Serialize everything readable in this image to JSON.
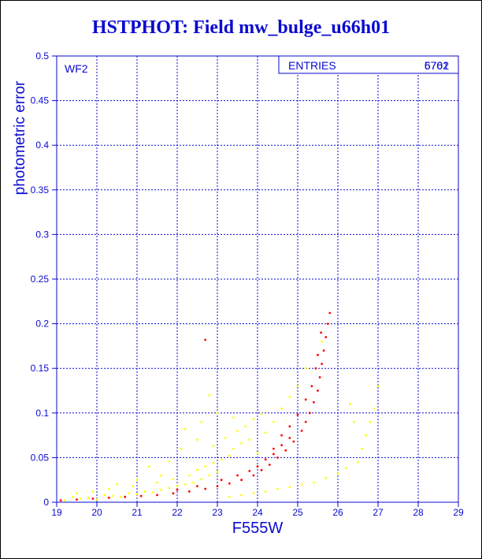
{
  "chart_data": {
    "type": "scatter",
    "title": "HSTPHOT: Field mw_bulge_u66h01",
    "xlabel": "F555W",
    "ylabel": "photometric error",
    "panel_label": "WF2",
    "stats_label": "ENTRIES",
    "entries_values": [
      "5761",
      "6702"
    ],
    "xlim": [
      19,
      29
    ],
    "ylim": [
      0,
      0.5
    ],
    "x_ticks": [
      "19",
      "20",
      "21",
      "22",
      "23",
      "24",
      "25",
      "26",
      "27",
      "28",
      "29"
    ],
    "y_ticks": [
      "0",
      "0.05",
      "0.1",
      "0.15",
      "0.2",
      "0.25",
      "0.3",
      "0.35",
      "0.4",
      "0.45",
      "0.5"
    ],
    "grid": true,
    "series": [
      {
        "color": "#ffff00",
        "points": [
          [
            19.2,
            0.002
          ],
          [
            19.4,
            0.006
          ],
          [
            19.6,
            0.004
          ],
          [
            19.8,
            0.005
          ],
          [
            20.0,
            0.003
          ],
          [
            20.2,
            0.008
          ],
          [
            20.4,
            0.007
          ],
          [
            20.6,
            0.006
          ],
          [
            20.8,
            0.01
          ],
          [
            21.0,
            0.009
          ],
          [
            21.2,
            0.012
          ],
          [
            21.4,
            0.011
          ],
          [
            21.6,
            0.014
          ],
          [
            21.8,
            0.016
          ],
          [
            22.0,
            0.018
          ],
          [
            22.2,
            0.02
          ],
          [
            22.4,
            0.022
          ],
          [
            22.6,
            0.026
          ],
          [
            22.8,
            0.03
          ],
          [
            23.0,
            0.034
          ],
          [
            20.3,
            0.015
          ],
          [
            20.9,
            0.018
          ],
          [
            21.5,
            0.022
          ],
          [
            21.9,
            0.026
          ],
          [
            22.3,
            0.03
          ],
          [
            22.5,
            0.036
          ],
          [
            22.7,
            0.04
          ],
          [
            22.9,
            0.044
          ],
          [
            23.1,
            0.048
          ],
          [
            23.3,
            0.052
          ],
          [
            21.3,
            0.04
          ],
          [
            21.8,
            0.046
          ],
          [
            22.1,
            0.06
          ],
          [
            22.5,
            0.07
          ],
          [
            22.9,
            0.063
          ],
          [
            23.2,
            0.072
          ],
          [
            23.5,
            0.08
          ],
          [
            23.7,
            0.085
          ],
          [
            23.9,
            0.093
          ],
          [
            24.1,
            0.099
          ],
          [
            23.4,
            0.06
          ],
          [
            23.6,
            0.066
          ],
          [
            23.8,
            0.07
          ],
          [
            24.0,
            0.055
          ],
          [
            24.2,
            0.078
          ],
          [
            24.4,
            0.09
          ],
          [
            24.6,
            0.105
          ],
          [
            24.8,
            0.118
          ],
          [
            25.0,
            0.13
          ],
          [
            25.2,
            0.15
          ],
          [
            22.2,
            0.082
          ],
          [
            22.6,
            0.09
          ],
          [
            23.0,
            0.1
          ],
          [
            23.4,
            0.095
          ],
          [
            22.8,
            0.12
          ],
          [
            21.6,
            0.03
          ],
          [
            21.0,
            0.025
          ],
          [
            20.5,
            0.02
          ],
          [
            19.9,
            0.012
          ],
          [
            19.5,
            0.01
          ],
          [
            23.3,
            0.006
          ],
          [
            23.6,
            0.008
          ],
          [
            23.9,
            0.01
          ],
          [
            24.2,
            0.012
          ],
          [
            24.5,
            0.015
          ],
          [
            24.8,
            0.017
          ],
          [
            25.1,
            0.02
          ],
          [
            25.4,
            0.022
          ],
          [
            25.7,
            0.027
          ],
          [
            26.0,
            0.032
          ],
          [
            26.2,
            0.038
          ],
          [
            26.5,
            0.045
          ],
          [
            26.6,
            0.06
          ],
          [
            26.7,
            0.075
          ],
          [
            26.8,
            0.09
          ],
          [
            26.9,
            0.105
          ],
          [
            27.0,
            0.13
          ],
          [
            26.4,
            0.09
          ],
          [
            26.3,
            0.11
          ],
          [
            25.6,
            0.18
          ]
        ]
      },
      {
        "color": "#ff0000",
        "points": [
          [
            19.1,
            0.002
          ],
          [
            19.5,
            0.003
          ],
          [
            19.9,
            0.004
          ],
          [
            20.3,
            0.005
          ],
          [
            20.7,
            0.006
          ],
          [
            21.1,
            0.007
          ],
          [
            21.5,
            0.008
          ],
          [
            21.9,
            0.01
          ],
          [
            22.3,
            0.012
          ],
          [
            22.7,
            0.015
          ],
          [
            23.0,
            0.018
          ],
          [
            23.3,
            0.021
          ],
          [
            23.6,
            0.025
          ],
          [
            23.9,
            0.03
          ],
          [
            24.1,
            0.036
          ],
          [
            24.3,
            0.042
          ],
          [
            24.5,
            0.05
          ],
          [
            24.7,
            0.058
          ],
          [
            24.9,
            0.068
          ],
          [
            25.1,
            0.08
          ],
          [
            25.2,
            0.09
          ],
          [
            25.3,
            0.1
          ],
          [
            25.4,
            0.112
          ],
          [
            25.5,
            0.125
          ],
          [
            25.55,
            0.14
          ],
          [
            25.6,
            0.155
          ],
          [
            25.65,
            0.17
          ],
          [
            25.7,
            0.185
          ],
          [
            25.75,
            0.2
          ],
          [
            25.8,
            0.212
          ],
          [
            22.7,
            0.182
          ],
          [
            24.4,
            0.06
          ],
          [
            24.6,
            0.075
          ],
          [
            24.8,
            0.085
          ],
          [
            25.0,
            0.098
          ],
          [
            25.2,
            0.115
          ],
          [
            25.35,
            0.13
          ],
          [
            25.45,
            0.15
          ],
          [
            25.5,
            0.165
          ],
          [
            25.58,
            0.19
          ],
          [
            22.0,
            0.014
          ],
          [
            22.5,
            0.018
          ],
          [
            23.1,
            0.025
          ],
          [
            23.5,
            0.03
          ],
          [
            23.8,
            0.035
          ],
          [
            24.0,
            0.04
          ],
          [
            24.2,
            0.048
          ],
          [
            24.4,
            0.054
          ],
          [
            24.6,
            0.064
          ],
          [
            24.8,
            0.072
          ]
        ]
      }
    ]
  }
}
